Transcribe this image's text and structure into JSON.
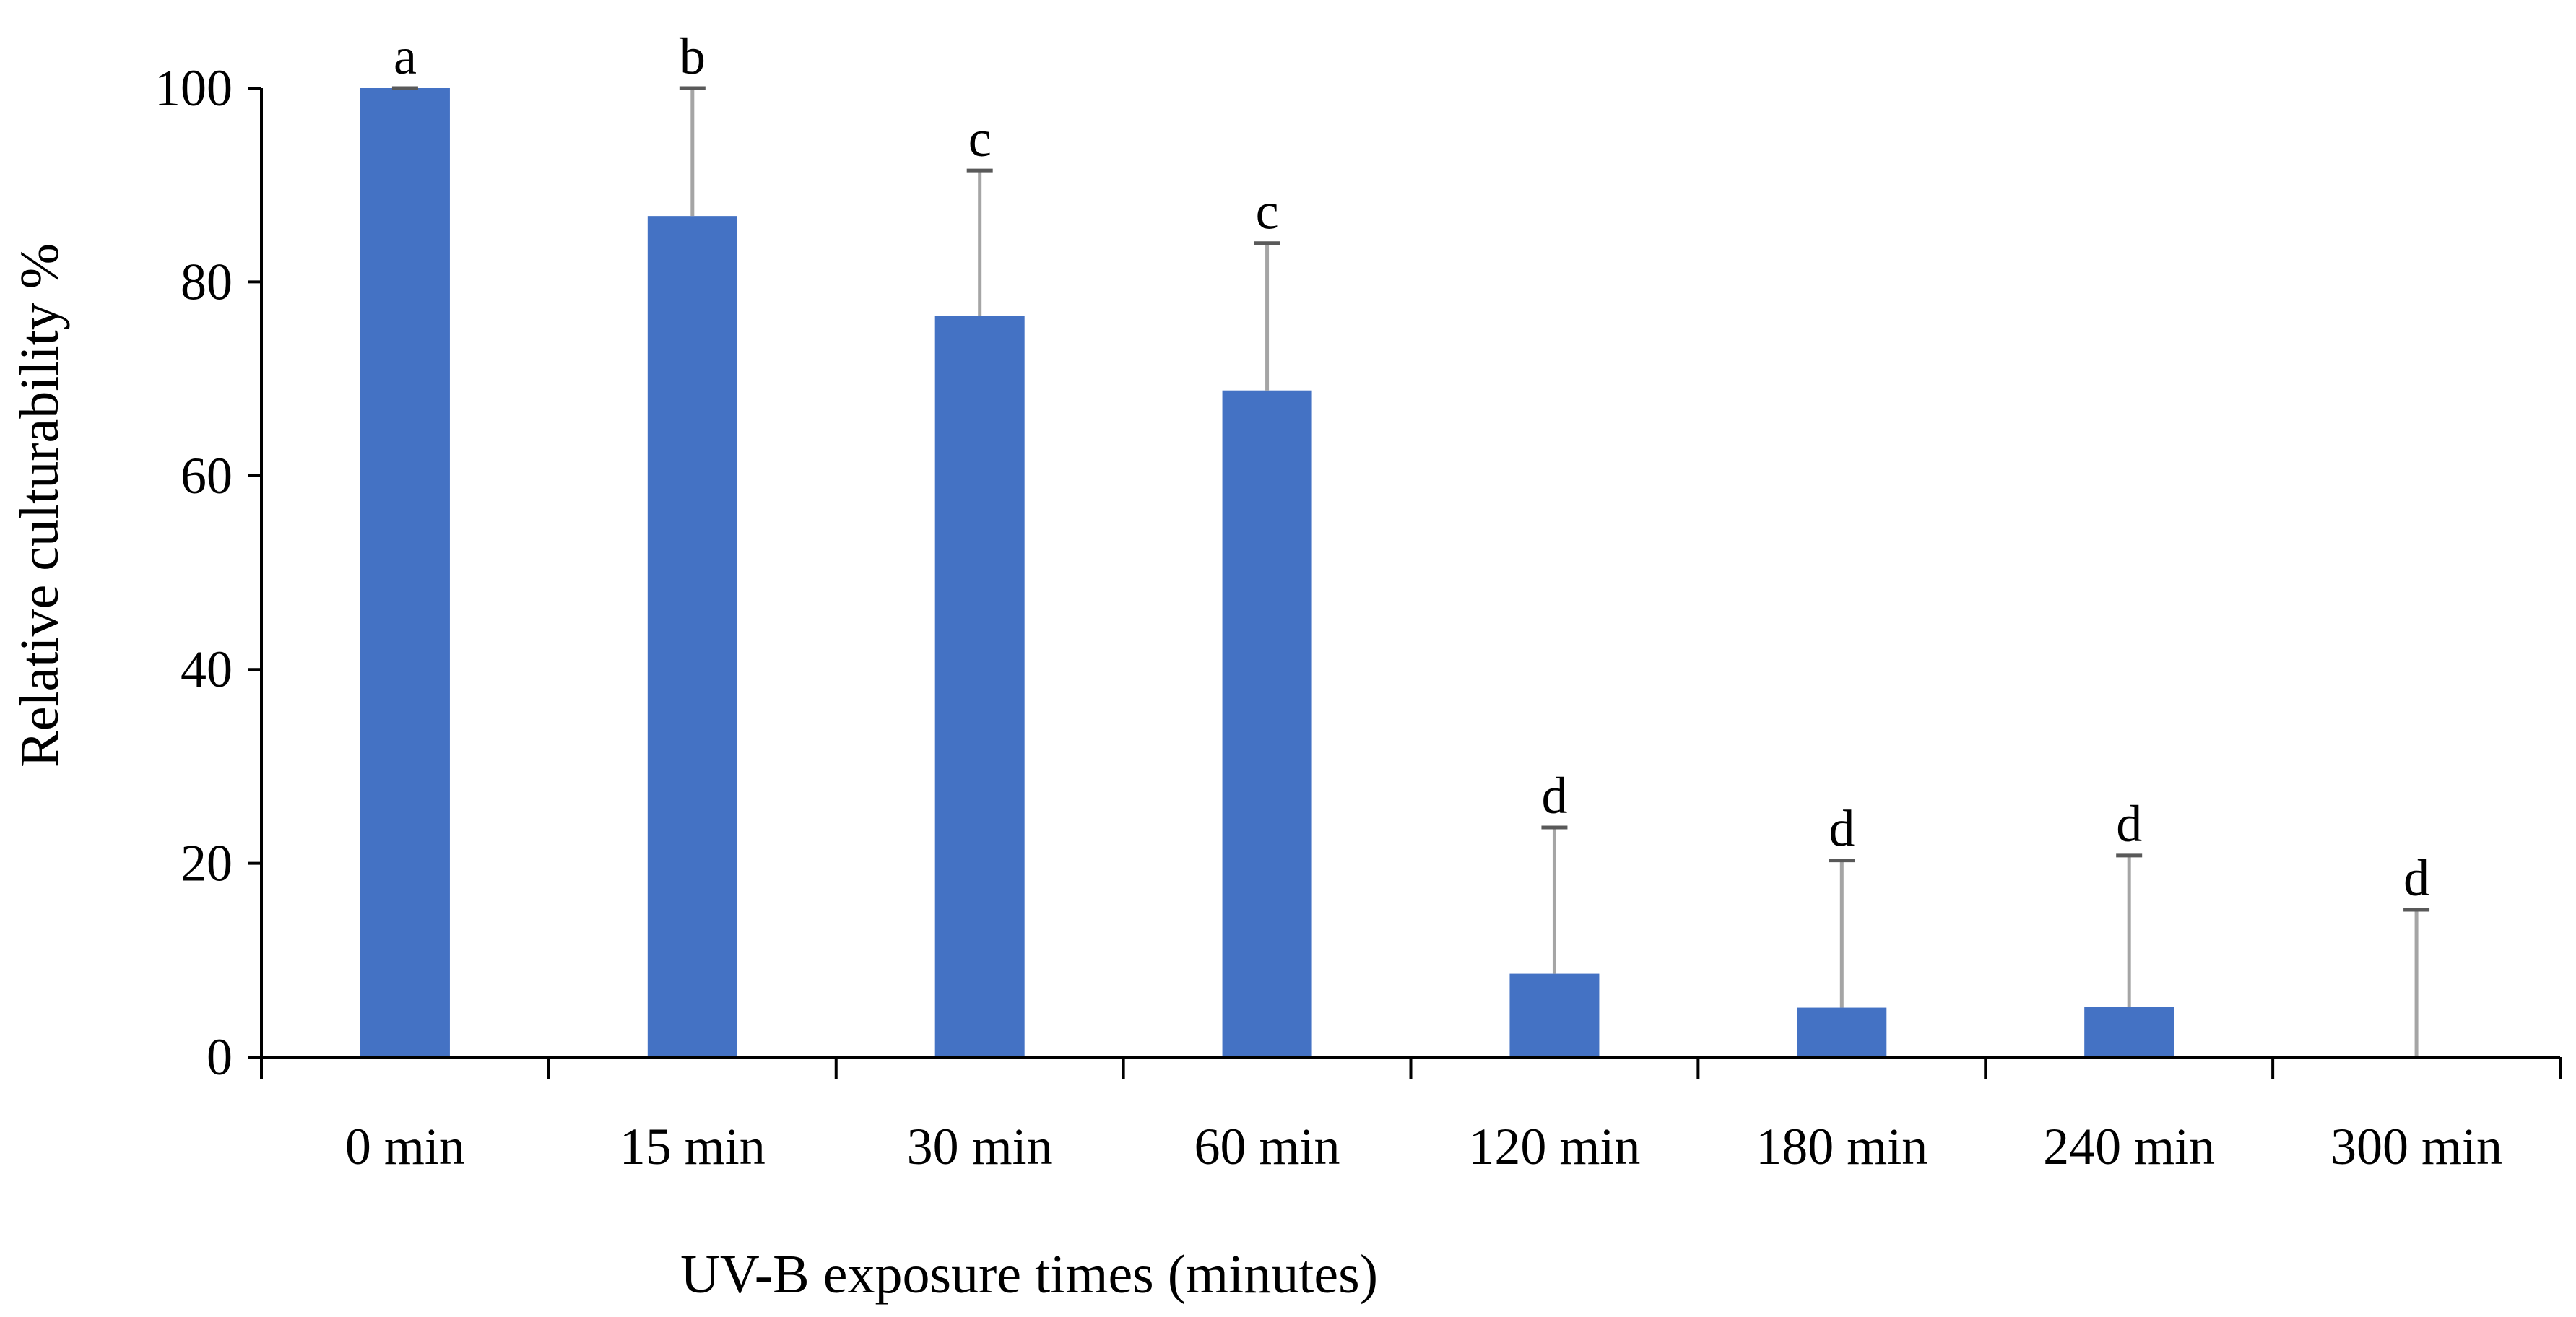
{
  "chart_data": {
    "type": "bar",
    "categories": [
      "0 min",
      "15 min",
      "30 min",
      "60 min",
      "120 min",
      "180 min",
      "240 min",
      "300 min"
    ],
    "values": [
      100,
      86.8,
      76.5,
      68.8,
      8.6,
      5.1,
      5.2,
      0
    ],
    "error_upper": [
      100,
      100,
      91.5,
      84.0,
      23.7,
      20.3,
      20.8,
      15.2
    ],
    "significance_letters": [
      "a",
      "b",
      "c",
      "c",
      "d",
      "d",
      "d",
      "d"
    ],
    "title": "",
    "xlabel": "UV-B exposure times (minutes)",
    "ylabel": "Relative culturability %",
    "ylim": [
      0,
      100
    ],
    "yticks": [
      0,
      20,
      40,
      60,
      80,
      100
    ],
    "grid": false,
    "bar_color": "#4472C4",
    "error_bar_color": "#A5A5A5"
  }
}
